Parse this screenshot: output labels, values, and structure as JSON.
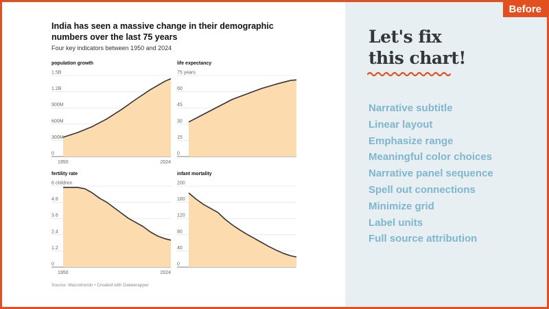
{
  "badge": "Before",
  "headline": [
    "Let's fix",
    "this chart!"
  ],
  "tips": [
    "Narrative subtitle",
    "Linear layout",
    "Emphasize range",
    "Meaningful color choices",
    "Narrative panel sequence",
    "Spell out connections",
    "Minimize grid",
    "Label units",
    "Full source attribution"
  ],
  "colors": {
    "accent": "#e2501f",
    "area_fill": "#fcdcae",
    "line": "#333333",
    "tips_text": "#7fb6cf",
    "panel_bg": "#e8eff2"
  },
  "chart": {
    "title": "India has seen a massive change in their demographic numbers over the last 75 years",
    "subtitle": "Four key indicators between 1950 and 2024",
    "source": "Source: Macrotrends • Created with Datawrapper"
  },
  "chart_data": [
    {
      "type": "area",
      "title": "population growth",
      "x": [
        1950,
        1960,
        1970,
        1980,
        1990,
        2000,
        2010,
        2020,
        2024
      ],
      "y": [
        357000000,
        445000000,
        555000000,
        697000000,
        870000000,
        1060000000,
        1240000000,
        1396000000,
        1441000000
      ],
      "ylim": [
        0,
        1500000000
      ],
      "yticks": [
        "0",
        "300M",
        "600M",
        "900M",
        "1.2B",
        "1.5B"
      ],
      "xticks": [
        "1950",
        "2024"
      ],
      "grid": true
    },
    {
      "type": "area",
      "title": "life expectancy",
      "x": [
        1950,
        1960,
        1970,
        1980,
        1990,
        2000,
        2010,
        2020,
        2024
      ],
      "y": [
        32,
        39,
        46,
        53,
        58,
        63,
        67,
        70.5,
        71
      ],
      "ylim": [
        0,
        75
      ],
      "yticks": [
        "0",
        "15",
        "30",
        "45",
        "60",
        "75 years"
      ],
      "xticks": [],
      "grid": true
    },
    {
      "type": "area",
      "title": "fertility rate",
      "x": [
        1950,
        1955,
        1960,
        1965,
        1970,
        1975,
        1980,
        1985,
        1990,
        1995,
        2000,
        2005,
        2010,
        2015,
        2020,
        2024
      ],
      "y": [
        5.9,
        5.9,
        5.9,
        5.8,
        5.5,
        5.1,
        4.8,
        4.4,
        4.0,
        3.6,
        3.3,
        3.0,
        2.6,
        2.3,
        2.1,
        2.0
      ],
      "ylim": [
        0,
        6
      ],
      "yticks": [
        "0",
        "1.2",
        "2.4",
        "3.6",
        "4.8",
        "6 children"
      ],
      "xticks": [
        "1950",
        "2024"
      ],
      "grid": true
    },
    {
      "type": "area",
      "title": "infant mortality",
      "x": [
        1950,
        1955,
        1960,
        1965,
        1970,
        1975,
        1980,
        1985,
        1990,
        1995,
        2000,
        2005,
        2010,
        2015,
        2020,
        2024
      ],
      "y": [
        183,
        168,
        155,
        145,
        135,
        118,
        104,
        92,
        81,
        71,
        61,
        51,
        42,
        34,
        28,
        25
      ],
      "ylim": [
        0,
        200
      ],
      "yticks": [
        "0",
        "40",
        "80",
        "120",
        "160",
        "200"
      ],
      "xticks": [],
      "grid": true
    }
  ]
}
